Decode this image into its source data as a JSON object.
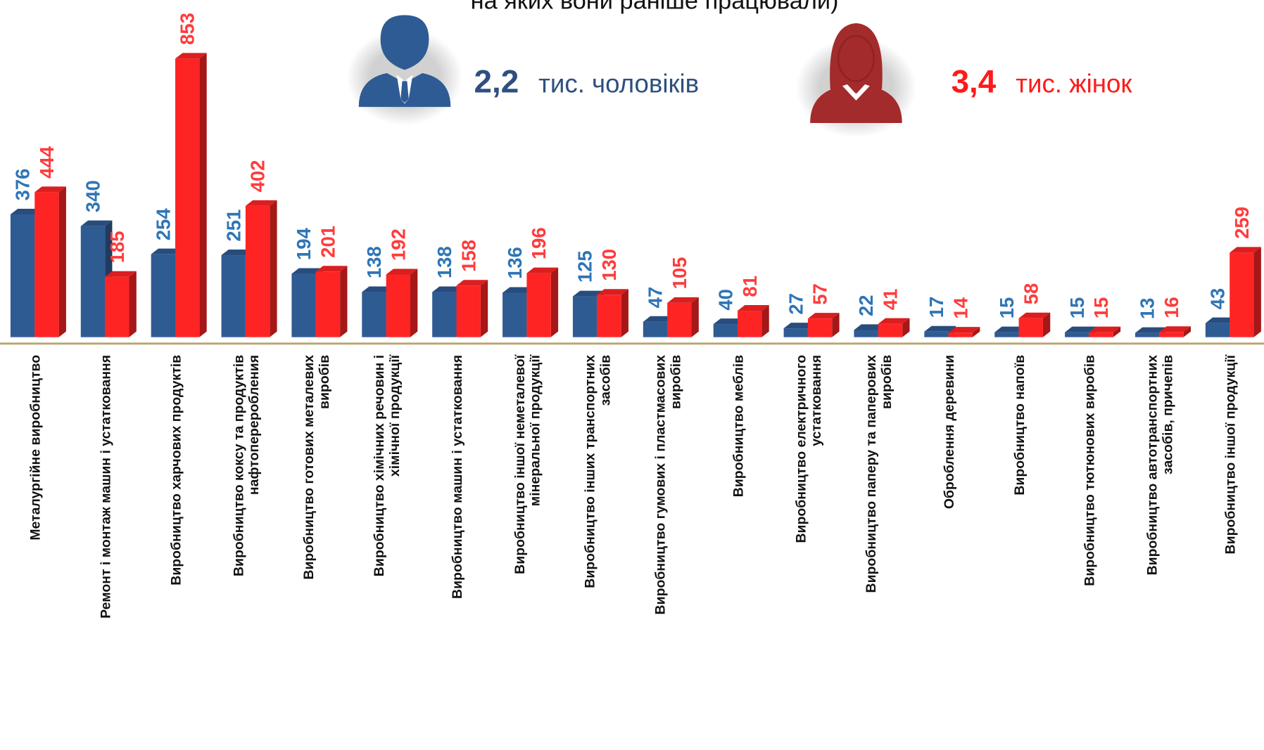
{
  "chart_data": {
    "type": "bar",
    "title": "на яких вони раніше працювали)",
    "categories": [
      "Металургійне виробництво",
      "Ремонт і монтаж машин і устатковання",
      "Виробництво харчових продуктів",
      "Виробництво коксу та продуктів нафтопереробления",
      "Виробництво готових металевих виробів",
      "Виробництво хімічних речовин і хімічної продукції",
      "Виробництво машин і устатковання",
      "Виробництво іншої неметалевої мінеральної продукції",
      "Виробництво інших транспортних засобів",
      "Виробництво гумових і пластмасових виробів",
      "Виробництво меблів",
      "Виробництво електричного устатковання",
      "Виробництво паперу та паперових виробів",
      "Оброблення деревини",
      "Виробництво напоїв",
      "Виробництво тютюнових виробів",
      "Виробництво автотранспортних засобів, причепів",
      "Виробництво іншої продукції"
    ],
    "series": [
      {
        "name": "тис. чоловіків",
        "total": "2,2",
        "color": "#2f5b93",
        "label_color": "#2e75b6",
        "values": [
          376,
          340,
          254,
          251,
          194,
          138,
          138,
          136,
          125,
          47,
          40,
          27,
          22,
          17,
          15,
          15,
          13,
          43
        ]
      },
      {
        "name": "тис. жінок",
        "total": "3,4",
        "color": "#ff2424",
        "label_color": "#ff3b3b",
        "values": [
          444,
          185,
          853,
          402,
          201,
          192,
          158,
          196,
          130,
          105,
          81,
          57,
          41,
          14,
          58,
          15,
          16,
          259
        ]
      }
    ]
  }
}
